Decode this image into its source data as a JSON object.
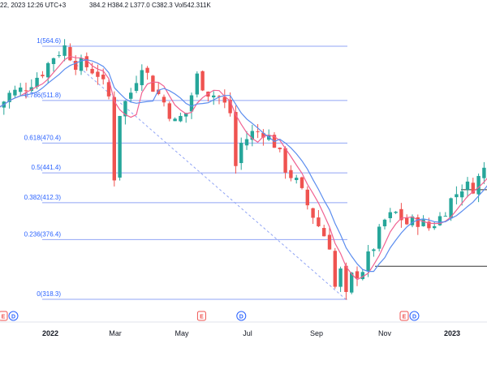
{
  "header": {
    "text": "22, 2023 12:26 UTC+3",
    "ohlc": [
      {
        "key": "",
        "value": "384.2"
      },
      {
        "key": "H",
        "value": "384.2"
      },
      {
        "key": "L",
        "value": "377.0"
      },
      {
        "key": "C",
        "value": "382.3"
      },
      {
        "key": "Vol",
        "value": "542.311K"
      }
    ]
  },
  "colors": {
    "up": "#26a69a",
    "down": "#ef5350",
    "ma_fast": "#f06292",
    "ma_slow": "#5b8def",
    "fib": "#2962ff",
    "fib_line": "#90a4f5"
  },
  "chart_data": {
    "type": "candlestick",
    "title": "",
    "xlabel": "",
    "ylabel": "",
    "ylim": [
      300,
      590
    ],
    "x_ticks": [
      "2022",
      "Mar",
      "May",
      "Jul",
      "Sep",
      "Nov",
      "2023"
    ],
    "x_tick_bold": [
      true,
      false,
      false,
      false,
      false,
      false,
      true
    ],
    "fibonacci": [
      {
        "label": "1(564.6)",
        "value": 564.6
      },
      {
        "label": "0.786(511.8)",
        "value": 511.8
      },
      {
        "label": "0.618(470.4)",
        "value": 470.4
      },
      {
        "label": "0.5(441.4)",
        "value": 441.4
      },
      {
        "label": "0.382(412.3)",
        "value": 412.3
      },
      {
        "label": "0.236(376.4)",
        "value": 376.4
      },
      {
        "label": "0(318.3)",
        "value": 318.3
      }
    ],
    "horizontal_lines": [
      {
        "value": 350.5,
        "from": "Oct",
        "to": "end"
      },
      {
        "value": 425.0,
        "from": "Dec",
        "to": "end"
      }
    ],
    "trend_line": {
      "from_value": 553,
      "to_value": 318.3
    },
    "price_path": [
      [
        0,
        505
      ],
      [
        2,
        518
      ],
      [
        4,
        522
      ],
      [
        6,
        530
      ],
      [
        8,
        540
      ],
      [
        10,
        555
      ],
      [
        12,
        564
      ],
      [
        14,
        548
      ],
      [
        16,
        545
      ],
      [
        18,
        538
      ],
      [
        20,
        515
      ],
      [
        21,
        438
      ],
      [
        22,
        500
      ],
      [
        24,
        520
      ],
      [
        26,
        548
      ],
      [
        28,
        525
      ],
      [
        30,
        510
      ],
      [
        32,
        490
      ],
      [
        34,
        500
      ],
      [
        36,
        535
      ],
      [
        38,
        520
      ],
      [
        40,
        515
      ],
      [
        42,
        500
      ],
      [
        43,
        448
      ],
      [
        44,
        470
      ],
      [
        46,
        480
      ],
      [
        48,
        482
      ],
      [
        50,
        470
      ],
      [
        52,
        446
      ],
      [
        54,
        432
      ],
      [
        56,
        410
      ],
      [
        58,
        390
      ],
      [
        60,
        372
      ],
      [
        61,
        330
      ],
      [
        62,
        345
      ],
      [
        63,
        320
      ],
      [
        64,
        340
      ],
      [
        66,
        348
      ],
      [
        68,
        370
      ],
      [
        70,
        395
      ],
      [
        72,
        402
      ],
      [
        74,
        392
      ],
      [
        76,
        395
      ],
      [
        78,
        388
      ],
      [
        80,
        398
      ],
      [
        82,
        415
      ],
      [
        84,
        428
      ],
      [
        86,
        428
      ],
      [
        88,
        445
      ],
      [
        90,
        478
      ]
    ],
    "moving_averages": [
      {
        "name": "",
        "period": 20,
        "color_key": "ma_fast"
      },
      {
        "name": "",
        "period": 50,
        "color_key": "ma_slow"
      }
    ],
    "event_markers": [
      {
        "text": "E",
        "kind": "earn",
        "at": 0
      },
      {
        "text": "D",
        "kind": "div",
        "at": 1.2
      },
      {
        "text": "E",
        "kind": "earn",
        "at": 23.5
      },
      {
        "text": "D",
        "kind": "div",
        "at": 28.2
      },
      {
        "text": "E",
        "kind": "earn",
        "at": 47.5
      },
      {
        "text": "D",
        "kind": "div",
        "at": 48.7
      }
    ]
  }
}
